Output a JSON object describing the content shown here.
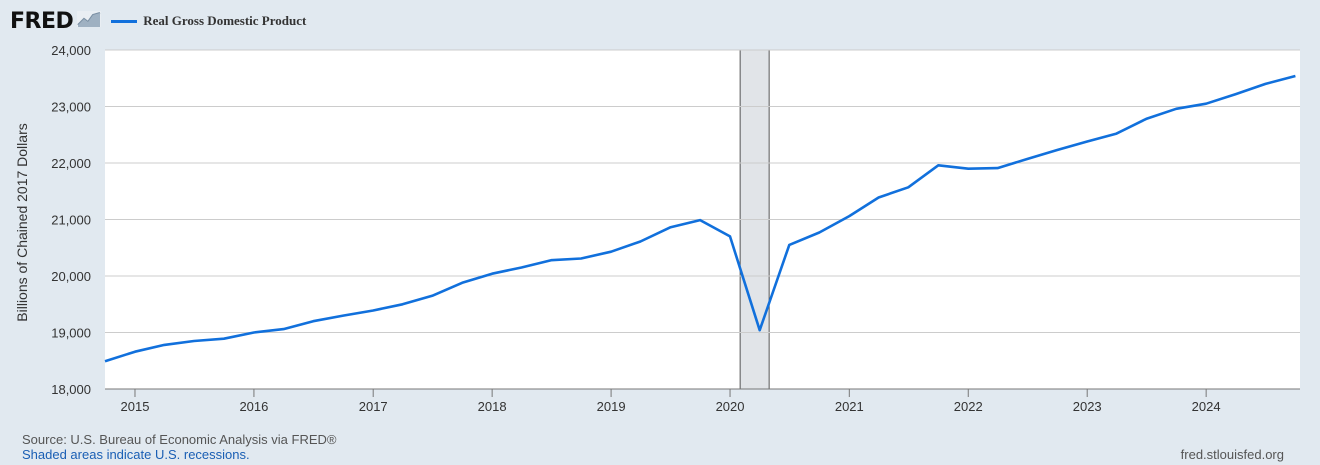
{
  "header": {
    "logo": "FRED",
    "logo_icon": "chart-line-icon"
  },
  "footer": {
    "source": "Source: U.S. Bureau of Economic Analysis via FRED®",
    "shaded_note": "Shaded areas indicate U.S. recessions.",
    "site": "fred.stlouisfed.org"
  },
  "colors": {
    "background": "#e1e9f0",
    "plot": "#ffffff",
    "line": "#1170dc",
    "recession": "#e1e4e8",
    "grid": "#cccccc"
  },
  "chart_data": {
    "type": "line",
    "title": "",
    "xlabel": "",
    "ylabel": "Billions of Chained 2017 Dollars",
    "ylim": [
      18000,
      24000
    ],
    "xlim": [
      "2014-10-01",
      "2024-10-15"
    ],
    "yticks": [
      18000,
      19000,
      20000,
      21000,
      22000,
      23000,
      24000
    ],
    "ytick_labels": [
      "18,000",
      "19,000",
      "20,000",
      "21,000",
      "22,000",
      "23,000",
      "24,000"
    ],
    "xtick_labels": [
      "2015",
      "2016",
      "2017",
      "2018",
      "2019",
      "2020",
      "2021",
      "2022",
      "2023",
      "2024"
    ],
    "grid": true,
    "legend_position": "top-left",
    "recessions": [
      {
        "start": "2020-02-01",
        "end": "2020-04-30"
      }
    ],
    "series": [
      {
        "name": "Real Gross Domestic Product",
        "x": [
          "2014-10-01",
          "2015-01-01",
          "2015-04-01",
          "2015-07-01",
          "2015-10-01",
          "2016-01-01",
          "2016-04-01",
          "2016-07-01",
          "2016-10-01",
          "2017-01-01",
          "2017-04-01",
          "2017-07-01",
          "2017-10-01",
          "2018-01-01",
          "2018-04-01",
          "2018-07-01",
          "2018-10-01",
          "2019-01-01",
          "2019-04-01",
          "2019-07-01",
          "2019-10-01",
          "2020-01-01",
          "2020-04-01",
          "2020-07-01",
          "2020-10-01",
          "2021-01-01",
          "2021-04-01",
          "2021-07-01",
          "2021-10-01",
          "2022-01-01",
          "2022-04-01",
          "2022-07-01",
          "2022-10-01",
          "2023-01-01",
          "2023-04-01",
          "2023-07-01",
          "2023-10-01",
          "2024-01-01",
          "2024-04-01",
          "2024-07-01",
          "2024-10-01"
        ],
        "values": [
          18490,
          18660,
          18780,
          18850,
          18890,
          19000,
          19060,
          19200,
          19300,
          19390,
          19500,
          19650,
          19880,
          20040,
          20150,
          20280,
          20310,
          20430,
          20610,
          20860,
          20990,
          20700,
          19040,
          20550,
          20770,
          21060,
          21390,
          21570,
          21960,
          21900,
          21910,
          22070,
          22230,
          22380,
          22520,
          22780,
          22960,
          23050,
          23220,
          23400,
          23540
        ]
      }
    ]
  }
}
